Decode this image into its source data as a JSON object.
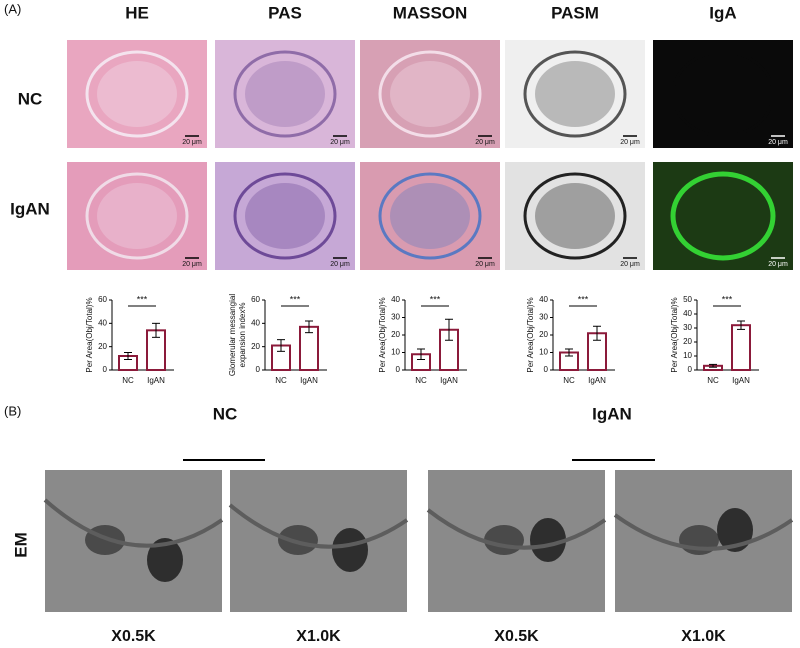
{
  "panel_a": {
    "label": "(A)",
    "columns": [
      "HE",
      "PAS",
      "MASSON",
      "PASM",
      "IgA"
    ],
    "rows": [
      "NC",
      "IgAN"
    ],
    "scale_label": "20 μm"
  },
  "chart_data": [
    {
      "type": "bar",
      "ylabel": [
        "Per Area(Obj/Total)%"
      ],
      "categories": [
        "NC",
        "IgAN"
      ],
      "values": [
        12,
        34
      ],
      "errors": [
        3,
        6
      ],
      "ylim": [
        0,
        60
      ],
      "yticks": [
        0,
        20,
        40,
        60
      ],
      "annotation": "***",
      "color": "#8b1a3a"
    },
    {
      "type": "bar",
      "ylabel": [
        "Glomerular messangial",
        "expansion index%"
      ],
      "categories": [
        "NC",
        "IgAN"
      ],
      "values": [
        21,
        37
      ],
      "errors": [
        5,
        5
      ],
      "ylim": [
        0,
        60
      ],
      "yticks": [
        0,
        20,
        40,
        60
      ],
      "annotation": "***",
      "color": "#8b1a3a"
    },
    {
      "type": "bar",
      "ylabel": [
        "Per Area(Obj/Total)%"
      ],
      "categories": [
        "NC",
        "IgAN"
      ],
      "values": [
        9,
        23
      ],
      "errors": [
        3,
        6
      ],
      "ylim": [
        0,
        40
      ],
      "yticks": [
        0,
        10,
        20,
        30,
        40
      ],
      "annotation": "***",
      "color": "#8b1a3a"
    },
    {
      "type": "bar",
      "ylabel": [
        "Per Area(Obj/Total)%"
      ],
      "categories": [
        "NC",
        "IgAN"
      ],
      "values": [
        10,
        21
      ],
      "errors": [
        2,
        4
      ],
      "ylim": [
        0,
        40
      ],
      "yticks": [
        0,
        10,
        20,
        30,
        40
      ],
      "annotation": "***",
      "color": "#8b1a3a"
    },
    {
      "type": "bar",
      "ylabel": [
        "Per Area(Obj/Total)%"
      ],
      "categories": [
        "NC",
        "IgAN"
      ],
      "values": [
        3,
        32
      ],
      "errors": [
        1,
        3
      ],
      "ylim": [
        0,
        50
      ],
      "yticks": [
        0,
        10,
        20,
        30,
        40,
        50
      ],
      "annotation": "***",
      "color": "#8b1a3a"
    }
  ],
  "panel_b": {
    "label": "(B)",
    "groups": [
      "NC",
      "IgAN"
    ],
    "row_label": "EM",
    "magnifications": [
      "X0.5K",
      "X1.0K",
      "X0.5K",
      "X1.0K"
    ]
  }
}
